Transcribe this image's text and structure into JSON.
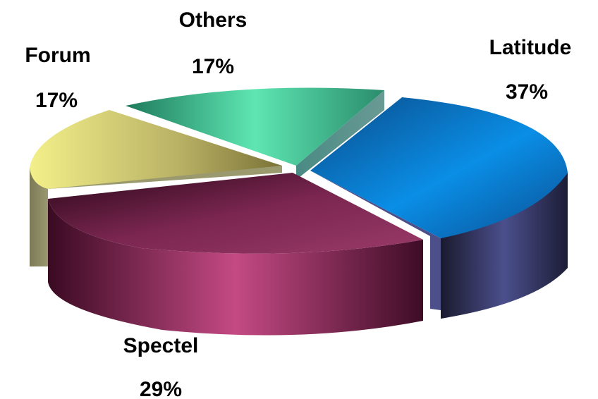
{
  "chart_data": {
    "type": "pie",
    "style": "3d-exploded",
    "title": "",
    "slices": [
      {
        "name": "Latitude",
        "label": "37%",
        "value": 37,
        "color": "#0a64b4"
      },
      {
        "name": "Spectel",
        "label": "29%",
        "value": 29,
        "color": "#8c2a5a"
      },
      {
        "name": "Forum",
        "label": "17%",
        "value": 17,
        "color": "#d8d47a"
      },
      {
        "name": "Others",
        "label": "17%",
        "value": 17,
        "color": "#3ccc98"
      }
    ]
  }
}
